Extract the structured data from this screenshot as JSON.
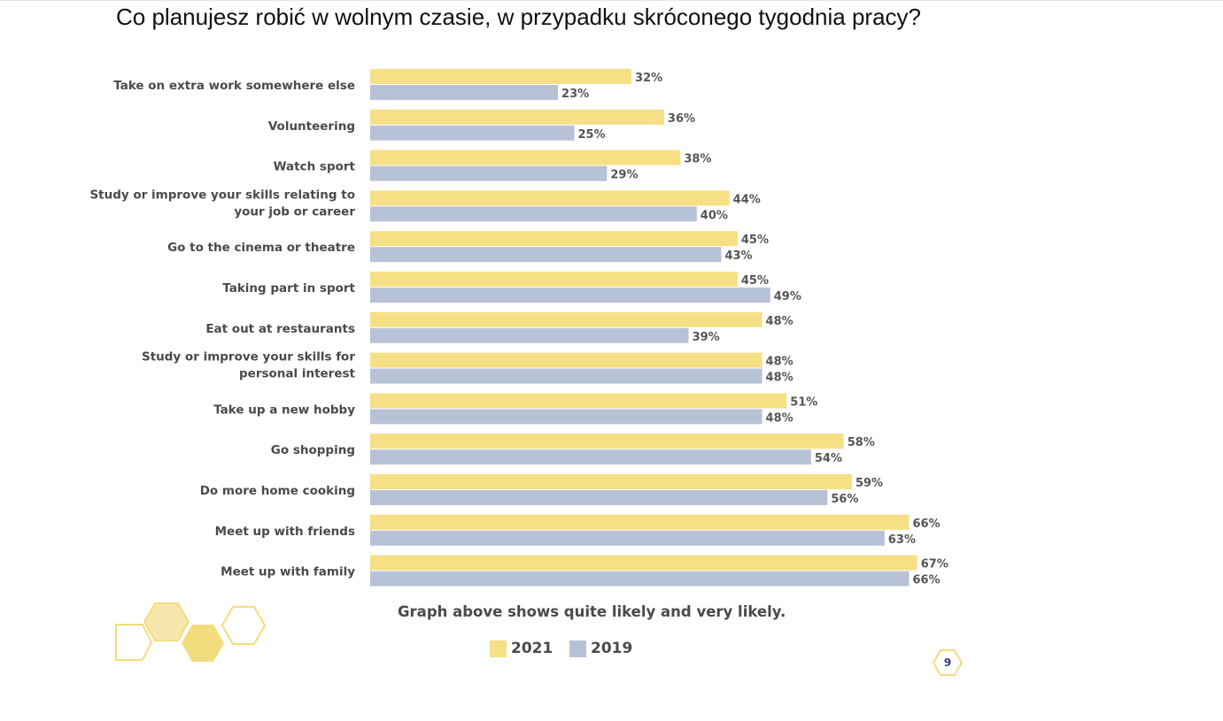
{
  "page": {
    "title": "Co planujesz robić w wolnym czasie, w przypadku skróconego tygodnia pracy?",
    "note": "Graph above shows quite likely and very likely.",
    "page_number": "9"
  },
  "colors": {
    "series_2021": "#f7df85",
    "series_2019": "#b8c2d6",
    "hexagon": "#f3dc7c"
  },
  "chart_data": {
    "type": "bar",
    "orientation": "horizontal",
    "value_suffix": "%",
    "categories": [
      [
        "Take on extra work somewhere else"
      ],
      [
        "Volunteering"
      ],
      [
        "Watch sport"
      ],
      [
        "Study or improve your skills relating to",
        "your job or career"
      ],
      [
        "Go to the cinema or theatre"
      ],
      [
        "Taking part in sport"
      ],
      [
        "Eat out at restaurants"
      ],
      [
        "Study or improve your skills for",
        "personal interest"
      ],
      [
        "Take up a new hobby"
      ],
      [
        "Go shopping"
      ],
      [
        "Do more home cooking"
      ],
      [
        "Meet up with friends"
      ],
      [
        "Meet up with family"
      ]
    ],
    "series": [
      {
        "name": "2021",
        "values": [
          32,
          36,
          38,
          44,
          45,
          45,
          48,
          48,
          51,
          58,
          59,
          66,
          67
        ]
      },
      {
        "name": "2019",
        "values": [
          23,
          25,
          29,
          40,
          43,
          49,
          39,
          48,
          48,
          54,
          56,
          63,
          66
        ]
      }
    ],
    "legend": {
      "position": "bottom",
      "items": [
        "2021",
        "2019"
      ]
    },
    "grid": false
  }
}
